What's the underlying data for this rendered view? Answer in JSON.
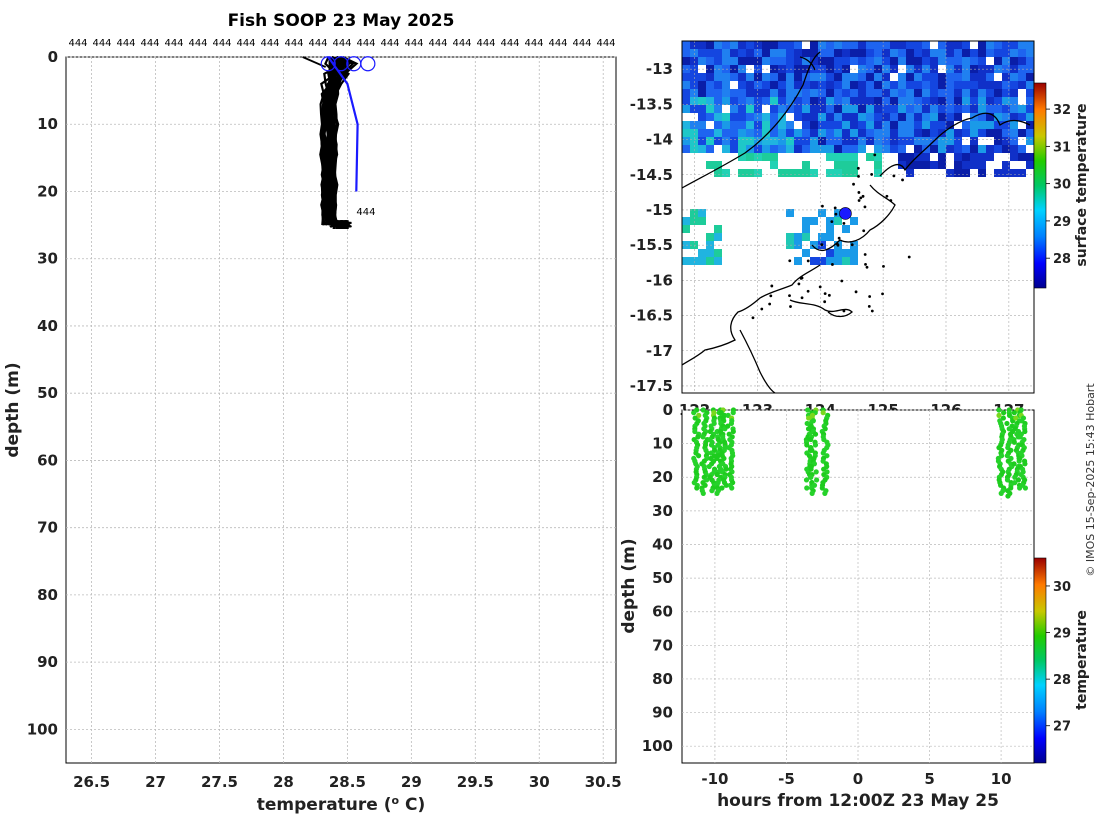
{
  "title": "Fish SOOP 23 May 2025",
  "credit": "© IMOS 15-Sep-2025 15:43 Hobart",
  "chart_data": [
    {
      "id": "profile",
      "type": "line",
      "xlabel": "temperature (° C)",
      "ylabel": "depth (m)",
      "xlim": [
        26.3,
        30.6
      ],
      "ylim": [
        105,
        0
      ],
      "xticks": [
        26.5,
        27,
        27.5,
        28,
        28.5,
        29,
        29.5,
        30,
        30.5
      ],
      "yticks": [
        0,
        10,
        20,
        30,
        40,
        50,
        60,
        70,
        80,
        90,
        100
      ],
      "top_label": "444",
      "top_label_count": 23,
      "end_label": "444",
      "grid": true,
      "series": [
        {
          "name": "profiles (black)",
          "color": "#000000",
          "count": 30,
          "depth_range": [
            0,
            25
          ],
          "temp_range": [
            28.3,
            28.65
          ]
        },
        {
          "name": "blue profile",
          "color": "#1a1aff",
          "points": [
            [
              28.35,
              0
            ],
            [
              28.5,
              4
            ],
            [
              28.58,
              10
            ],
            [
              28.57,
              20
            ]
          ]
        }
      ]
    },
    {
      "id": "map",
      "type": "heatmap",
      "colorbar_label": "surface temperature",
      "colorbar_range": [
        27.2,
        32.7
      ],
      "colorbar_ticks": [
        28,
        29,
        30,
        31,
        32
      ],
      "xlim": [
        121.8,
        127.4
      ],
      "ylim": [
        -17.6,
        -12.6
      ],
      "xticks": [
        "122",
        "123",
        "124",
        "125",
        "126",
        "127"
      ],
      "yticks": [
        "-13",
        "-13.5",
        "-14",
        "-14.5",
        "-15",
        "-15.5",
        "-16",
        "-16.5",
        "-17",
        "-17.5"
      ],
      "ytick_values": [
        -13,
        -13.5,
        -14,
        -14.5,
        -15,
        -15.5,
        -16,
        -16.5,
        -17,
        -17.5
      ],
      "vessel_position": [
        124.4,
        -15.05
      ]
    },
    {
      "id": "timeseries",
      "type": "scatter",
      "xlabel": "hours from 12:00Z 23 May 25",
      "ylabel": "depth (m)",
      "xlim": [
        -12.3,
        12.3
      ],
      "ylim": [
        105,
        0
      ],
      "xticks": [
        -10,
        -5,
        0,
        5,
        10
      ],
      "yticks": [
        0,
        10,
        20,
        30,
        40,
        50,
        60,
        70,
        80,
        90,
        100
      ],
      "colorbar_label": "temperature",
      "colorbar_range": [
        26.2,
        30.6
      ],
      "colorbar_ticks": [
        27,
        28,
        29,
        30
      ],
      "series": [
        {
          "name": "casts",
          "color": "#22cc22",
          "hours": [
            -11.3,
            -10.7,
            -10.2,
            -9.7,
            -9.4,
            -8.9,
            -3.4,
            -3.1,
            -2.3,
            10.0,
            10.6,
            11.1,
            11.5
          ],
          "max_depth": 26
        }
      ]
    }
  ]
}
